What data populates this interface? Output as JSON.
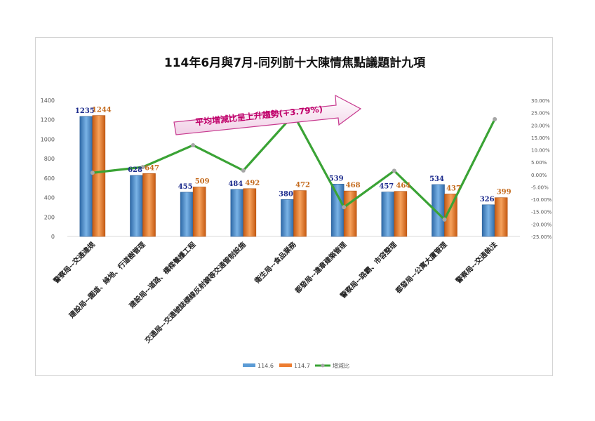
{
  "chart_data": {
    "type": "bar",
    "title": "114年6月與7月-同列前十大陳情焦點議題計九項",
    "categories": [
      "警察局--交通違規",
      "建設局--園道、綠地、行道樹管理",
      "建設局--道路、橋樑養護工程",
      "交通局--交通號誌標線反射鏡等交通管制設施",
      "衛生局--食品業務",
      "都發局--違章建築管理",
      "警察局--路霸、市容整理",
      "都發局--公寓大廈管理",
      "警察局--交通執法"
    ],
    "series": [
      {
        "name": "114.6",
        "type": "bar",
        "axis": "left",
        "values": [
          1235,
          628,
          455,
          484,
          380,
          539,
          457,
          534,
          326
        ],
        "color": "#5b9bd5"
      },
      {
        "name": "114.7",
        "type": "bar",
        "axis": "left",
        "values": [
          1244,
          647,
          509,
          492,
          472,
          468,
          464,
          437,
          399
        ],
        "color": "#ed7d31"
      },
      {
        "name": "增減比",
        "type": "line",
        "axis": "right",
        "values": [
          0.73,
          3.03,
          11.87,
          1.65,
          24.21,
          -13.17,
          1.53,
          -18.16,
          22.39
        ],
        "color": "#3aa335"
      }
    ],
    "ylim": [
      0,
      1400
    ],
    "yticks": [
      "0",
      "200",
      "400",
      "600",
      "800",
      "1000",
      "1200",
      "1400"
    ],
    "y2lim": [
      -25,
      30
    ],
    "y2ticks": [
      "30.00%",
      "25.00%",
      "20.00%",
      "15.00%",
      "10.00%",
      "5.00%",
      "0.00%",
      "-5.00%",
      "-10.00%",
      "-15.00%",
      "-20.00%",
      "-25.00%"
    ],
    "annotation": "平均增減比呈上升趨勢(+3.79%)",
    "legend_position": "bottom",
    "grid": false
  }
}
